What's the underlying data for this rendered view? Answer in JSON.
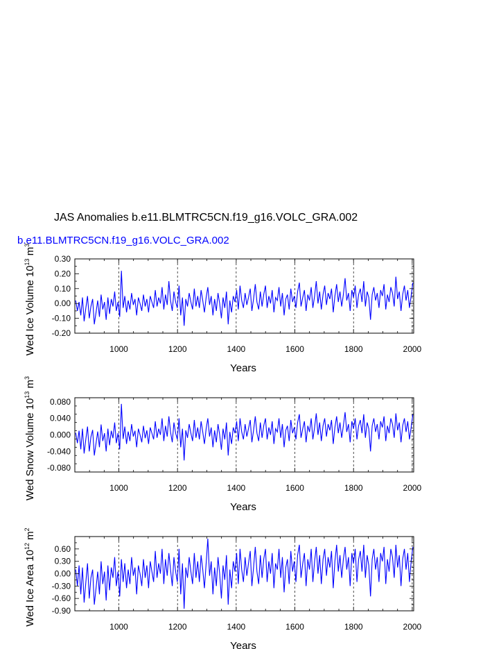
{
  "title": "JAS Anomalies b.e11.BLMTRC5CN.f19_g16.VOLC_GRA.002",
  "case_label": "b.e11.BLMTRC5CN.f19_g16.VOLC_GRA.002",
  "colors": {
    "series": "#0000ff",
    "axis": "#000000",
    "grid": "#000000",
    "case_label": "#0000ff"
  },
  "chart_data": [
    {
      "type": "line",
      "ylabel_main": "Wed Ice Volume 10",
      "ylabel_exp": "13",
      "ylabel_unit": "m",
      "ylabel_unit_exp": "3",
      "xlabel": "Years",
      "xlim": [
        850,
        2005
      ],
      "ylim": [
        -0.2,
        0.3
      ],
      "xticks": [
        1000,
        1200,
        1400,
        1600,
        1800,
        2000
      ],
      "xtick_labels": [
        "1000",
        "1200",
        "1400",
        "1600",
        "1800",
        "2000"
      ],
      "yticks": [
        -0.2,
        -0.1,
        0.0,
        0.1,
        0.2,
        0.3
      ],
      "ytick_labels": [
        "-0.20",
        "-0.10",
        "0.00",
        "0.10",
        "0.20",
        "0.30"
      ],
      "grid": "vertical dashed",
      "series": [
        {
          "values": [
            0.02,
            -0.05,
            0.01,
            -0.08,
            0.04,
            -0.12,
            -0.03,
            0.05,
            -0.1,
            -0.02,
            0.03,
            -0.14,
            -0.06,
            0.02,
            -0.09,
            0.06,
            -0.04,
            0.01,
            -0.11,
            0.04,
            -0.07,
            0.03,
            -0.02,
            0.08,
            -0.05,
            0.01,
            -0.09,
            0.22,
            -0.03,
            0.05,
            -0.06,
            0.02,
            -0.04,
            0.07,
            -0.01,
            0.03,
            -0.08,
            0.04,
            0.0,
            -0.05,
            0.06,
            -0.02,
            0.03,
            -0.06,
            0.05,
            0.01,
            -0.03,
            0.09,
            -0.02,
            0.04,
            0.0,
            0.11,
            -0.04,
            0.06,
            -0.01,
            0.15,
            0.02,
            -0.05,
            0.08,
            0.01,
            -0.03,
            0.12,
            -0.08,
            0.04,
            -0.15,
            0.03,
            -0.02,
            0.07,
            0.01,
            -0.04,
            0.1,
            -0.02,
            0.05,
            -0.03,
            0.09,
            0.02,
            -0.06,
            0.04,
            0.11,
            -0.01,
            0.05,
            -0.08,
            0.03,
            -0.05,
            0.07,
            0.0,
            -0.1,
            0.04,
            -0.03,
            0.08,
            -0.14,
            0.02,
            -0.06,
            0.05,
            0.01,
            0.09,
            -0.04,
            0.12,
            0.02,
            -0.03,
            0.07,
            -0.01,
            0.04,
            0.1,
            -0.05,
            0.03,
            0.13,
            0.01,
            -0.04,
            0.08,
            -0.02,
            0.06,
            0.12,
            -0.03,
            0.05,
            0.0,
            0.09,
            -0.06,
            0.04,
            0.02,
            0.11,
            -0.02,
            0.07,
            -0.08,
            0.03,
            0.06,
            -0.04,
            0.1,
            0.01,
            0.05,
            -0.03,
            0.08,
            0.14,
            -0.02,
            0.04,
            0.09,
            -0.05,
            0.06,
            0.02,
            0.11,
            -0.03,
            0.05,
            0.15,
            0.0,
            0.08,
            -0.04,
            0.06,
            0.12,
            -0.01,
            0.07,
            0.03,
            0.1,
            -0.06,
            0.05,
            0.13,
            0.01,
            0.08,
            -0.02,
            0.06,
            0.17,
            0.02,
            0.07,
            -0.05,
            0.09,
            0.04,
            0.12,
            -0.03,
            0.06,
            0.1,
            0.01,
            0.15,
            -0.02,
            0.08,
            0.04,
            -0.11,
            0.06,
            0.11,
            0.02,
            0.07,
            -0.03,
            0.09,
            0.05,
            0.13,
            -0.04,
            0.06,
            0.01,
            0.11,
            0.07,
            -0.02,
            0.18,
            0.03,
            0.08,
            -0.05,
            0.06,
            0.12,
            0.02,
            0.09,
            -0.03,
            0.05,
            0.14
          ]
        }
      ]
    },
    {
      "type": "line",
      "ylabel_main": "Wed Snow Volume 10",
      "ylabel_exp": "13",
      "ylabel_unit": "m",
      "ylabel_unit_exp": "3",
      "xlabel": "Years",
      "xlim": [
        850,
        2005
      ],
      "ylim": [
        -0.09,
        0.09
      ],
      "xticks": [
        1000,
        1200,
        1400,
        1600,
        1800,
        2000
      ],
      "xtick_labels": [
        "1000",
        "1200",
        "1400",
        "1600",
        "1800",
        "2000"
      ],
      "yticks": [
        -0.08,
        -0.04,
        0.0,
        0.04,
        0.08
      ],
      "ytick_labels": [
        "-0.080",
        "-0.040",
        "0.000",
        "0.040",
        "0.080"
      ],
      "grid": "vertical dashed",
      "series": [
        {
          "values": [
            0.005,
            -0.02,
            0.01,
            -0.035,
            0.015,
            -0.045,
            -0.01,
            0.02,
            -0.04,
            -0.005,
            0.012,
            -0.05,
            -0.02,
            0.008,
            -0.03,
            0.025,
            -0.015,
            0.004,
            -0.04,
            0.015,
            -0.025,
            0.01,
            -0.008,
            0.03,
            -0.02,
            0.004,
            -0.035,
            0.075,
            -0.01,
            0.02,
            -0.022,
            0.008,
            -0.015,
            0.026,
            -0.004,
            0.01,
            -0.03,
            0.015,
            0.0,
            -0.018,
            0.022,
            -0.008,
            0.011,
            -0.022,
            0.018,
            0.004,
            -0.011,
            0.033,
            -0.007,
            0.015,
            0.0,
            0.04,
            -0.015,
            0.022,
            -0.004,
            0.045,
            0.007,
            -0.018,
            0.03,
            0.004,
            -0.011,
            0.04,
            -0.03,
            0.015,
            -0.062,
            0.011,
            -0.007,
            0.026,
            0.004,
            -0.015,
            0.036,
            -0.007,
            0.018,
            -0.011,
            0.033,
            0.007,
            -0.022,
            0.015,
            0.04,
            -0.004,
            0.018,
            -0.03,
            0.011,
            -0.018,
            0.026,
            0.0,
            -0.036,
            0.015,
            -0.011,
            0.03,
            -0.05,
            0.007,
            -0.022,
            0.018,
            0.004,
            0.033,
            -0.015,
            0.04,
            0.007,
            -0.011,
            0.026,
            -0.004,
            0.015,
            0.036,
            -0.018,
            0.011,
            0.045,
            0.004,
            -0.015,
            0.03,
            -0.007,
            0.022,
            0.04,
            -0.011,
            0.018,
            0.0,
            0.033,
            -0.022,
            0.015,
            0.007,
            0.04,
            -0.007,
            0.026,
            -0.03,
            0.011,
            0.022,
            -0.015,
            0.036,
            0.004,
            0.018,
            -0.011,
            0.03,
            0.05,
            -0.007,
            0.015,
            0.033,
            -0.018,
            0.022,
            0.007,
            0.04,
            -0.011,
            0.018,
            0.052,
            0.0,
            0.03,
            -0.015,
            0.022,
            0.04,
            -0.004,
            0.026,
            0.011,
            0.036,
            -0.022,
            0.018,
            0.045,
            0.004,
            0.03,
            -0.007,
            0.022,
            0.055,
            0.007,
            0.026,
            -0.018,
            0.033,
            0.015,
            0.04,
            -0.011,
            0.022,
            0.036,
            0.004,
            0.05,
            -0.007,
            0.03,
            0.015,
            -0.04,
            0.022,
            0.04,
            0.007,
            0.026,
            -0.011,
            0.033,
            0.018,
            0.045,
            -0.015,
            0.022,
            0.004,
            0.04,
            0.026,
            -0.007,
            0.052,
            0.011,
            0.03,
            -0.018,
            0.022,
            0.04,
            0.007,
            0.033,
            -0.011,
            0.018,
            0.05
          ]
        }
      ]
    },
    {
      "type": "line",
      "ylabel_main": "Wed Ice Area 10",
      "ylabel_exp": "12",
      "ylabel_unit": "m",
      "ylabel_unit_exp": "2",
      "xlabel": "Years",
      "xlim": [
        850,
        2005
      ],
      "ylim": [
        -0.9,
        0.9
      ],
      "xticks": [
        1000,
        1200,
        1400,
        1600,
        1800,
        2000
      ],
      "xtick_labels": [
        "1000",
        "1200",
        "1400",
        "1600",
        "1800",
        "2000"
      ],
      "yticks": [
        -0.9,
        -0.6,
        -0.3,
        0.0,
        0.3,
        0.6
      ],
      "ytick_labels": [
        "-0.90",
        "-0.60",
        "-0.30",
        "0.00",
        "0.30",
        "0.60"
      ],
      "grid": "vertical dashed",
      "series": [
        {
          "values": [
            0.1,
            -0.3,
            0.2,
            -0.5,
            0.15,
            -0.7,
            -0.2,
            0.25,
            -0.6,
            -0.1,
            0.1,
            -0.75,
            -0.35,
            0.05,
            -0.5,
            0.3,
            -0.25,
            0.05,
            -0.65,
            0.2,
            -0.4,
            0.15,
            -0.1,
            0.4,
            -0.3,
            0.05,
            -0.55,
            0.35,
            -0.2,
            0.25,
            -0.35,
            0.1,
            -0.25,
            0.4,
            -0.05,
            0.15,
            -0.5,
            0.2,
            0.0,
            -0.3,
            0.35,
            -0.1,
            0.2,
            -0.35,
            0.3,
            0.05,
            -0.2,
            0.55,
            -0.1,
            0.25,
            0.0,
            0.6,
            -0.25,
            0.35,
            -0.05,
            0.5,
            0.1,
            -0.3,
            0.4,
            0.05,
            -0.2,
            0.6,
            -0.5,
            0.25,
            -0.85,
            0.15,
            -0.1,
            0.4,
            0.05,
            -0.25,
            0.5,
            -0.1,
            0.3,
            -0.2,
            0.45,
            0.1,
            -0.35,
            0.25,
            0.85,
            -0.05,
            0.3,
            -0.5,
            0.15,
            -0.3,
            0.4,
            0.0,
            -0.6,
            0.2,
            -0.15,
            0.45,
            -0.75,
            0.1,
            -0.35,
            0.3,
            0.05,
            0.5,
            -0.25,
            0.6,
            0.1,
            -0.2,
            0.4,
            -0.05,
            0.25,
            0.55,
            -0.3,
            0.15,
            0.65,
            0.05,
            -0.25,
            0.45,
            -0.1,
            0.35,
            0.6,
            -0.2,
            0.3,
            0.0,
            0.5,
            -0.35,
            0.25,
            0.1,
            0.6,
            -0.1,
            0.4,
            -0.45,
            0.15,
            0.35,
            -0.25,
            0.55,
            0.05,
            0.3,
            -0.2,
            0.45,
            0.7,
            -0.1,
            0.25,
            0.5,
            -0.3,
            0.35,
            0.1,
            0.6,
            -0.2,
            0.3,
            0.65,
            0.0,
            0.45,
            -0.25,
            0.35,
            0.6,
            -0.05,
            0.4,
            0.15,
            0.55,
            -0.35,
            0.3,
            0.7,
            0.05,
            0.45,
            -0.1,
            0.35,
            0.65,
            0.1,
            0.4,
            -0.3,
            0.5,
            0.25,
            0.6,
            -0.2,
            0.35,
            0.55,
            0.05,
            0.7,
            -0.1,
            0.45,
            0.2,
            -0.55,
            0.35,
            0.6,
            0.1,
            0.4,
            -0.2,
            0.5,
            0.3,
            0.65,
            -0.25,
            0.35,
            0.05,
            0.6,
            0.4,
            -0.1,
            0.7,
            0.15,
            0.45,
            -0.3,
            0.35,
            0.6,
            0.1,
            0.5,
            -0.2,
            0.3,
            0.65
          ]
        }
      ]
    }
  ]
}
